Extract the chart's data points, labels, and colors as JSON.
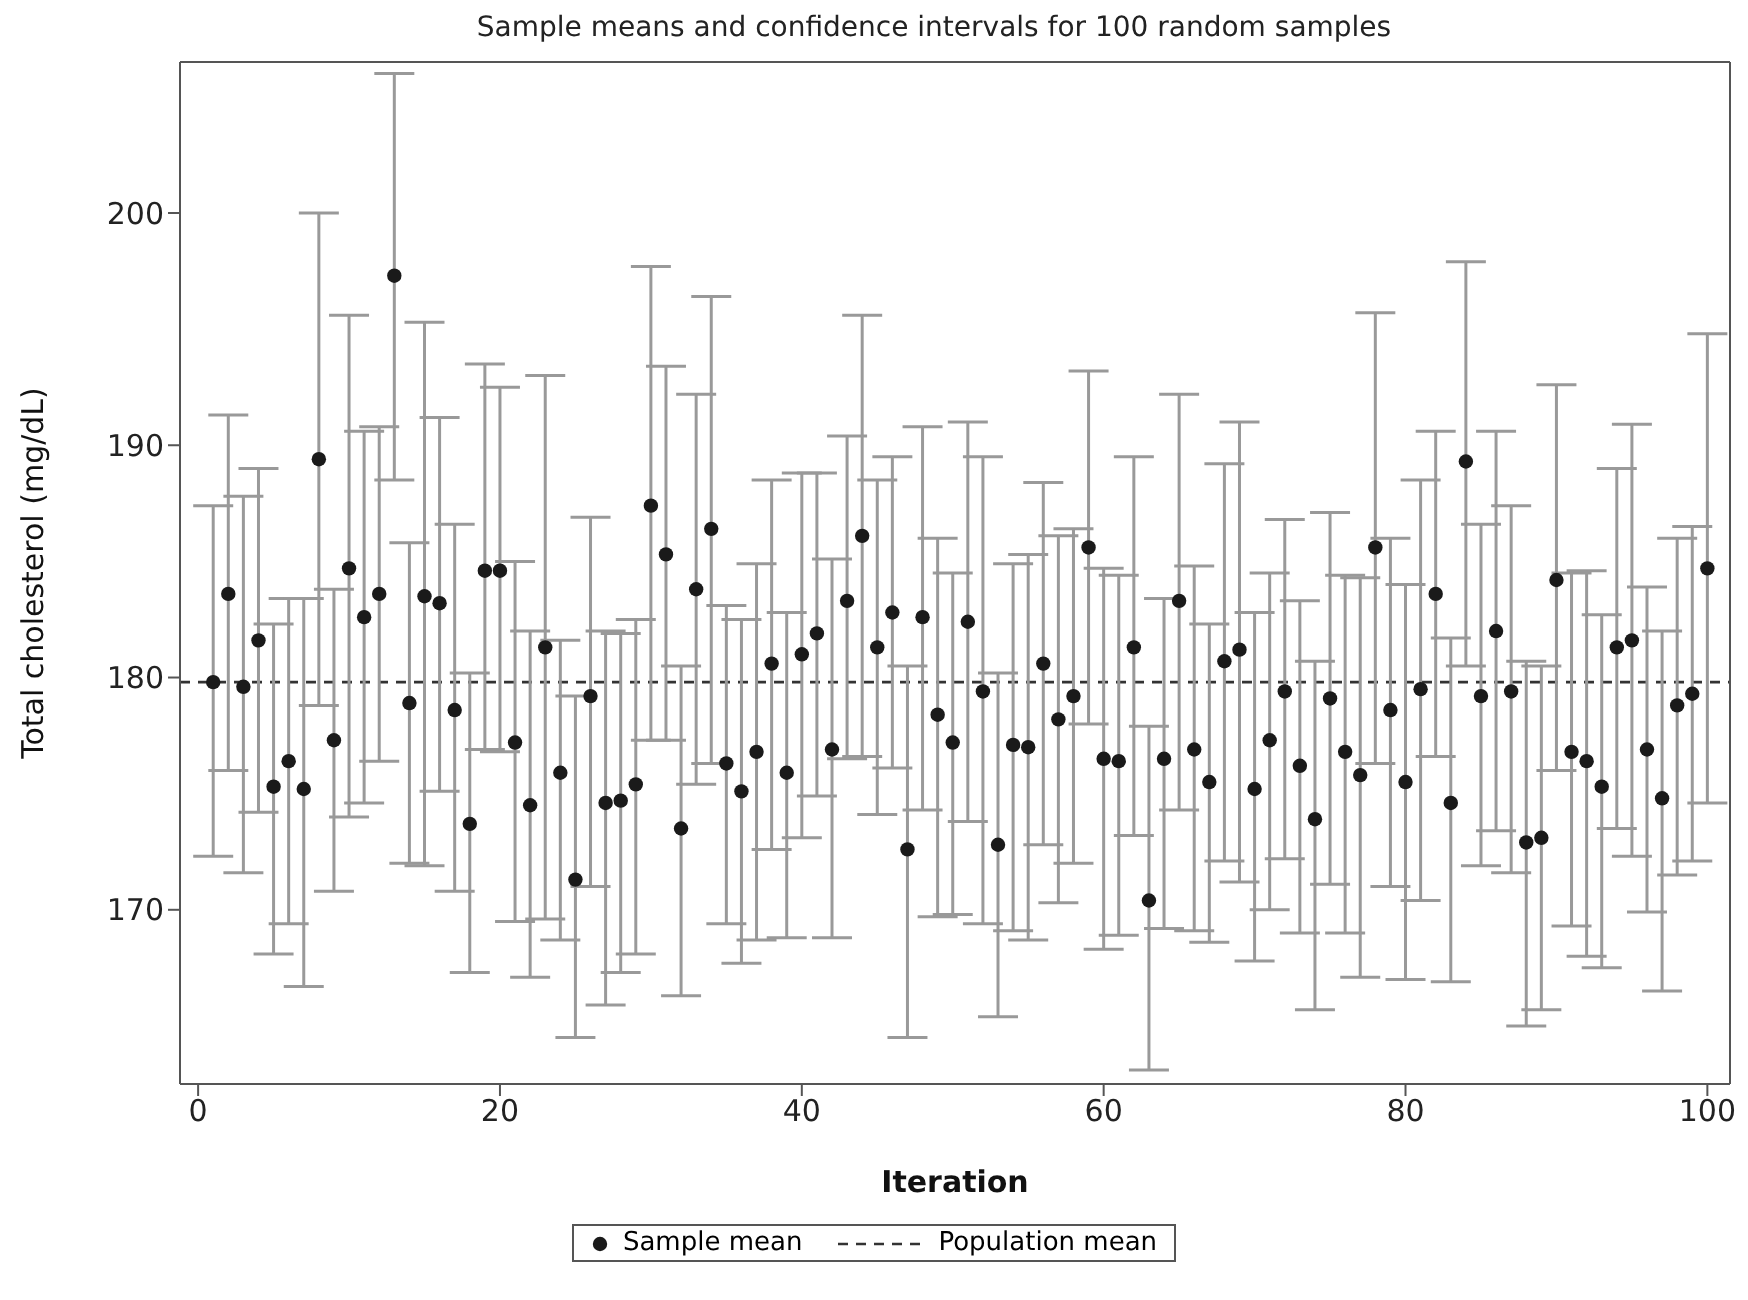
{
  "chart_data": {
    "type": "scatter",
    "title": "Sample means and confidence intervals for 100 random samples",
    "xlabel": "Iteration",
    "ylabel": "Total cholesterol (mg/dL)",
    "x": [
      1,
      2,
      3,
      4,
      5,
      6,
      7,
      8,
      9,
      10,
      11,
      12,
      13,
      14,
      15,
      16,
      17,
      18,
      19,
      20,
      21,
      22,
      23,
      24,
      25,
      26,
      27,
      28,
      29,
      30,
      31,
      32,
      33,
      34,
      35,
      36,
      37,
      38,
      39,
      40,
      41,
      42,
      43,
      44,
      45,
      46,
      47,
      48,
      49,
      50,
      51,
      52,
      53,
      54,
      55,
      56,
      57,
      58,
      59,
      60,
      61,
      62,
      63,
      64,
      65,
      66,
      67,
      68,
      69,
      70,
      71,
      72,
      73,
      74,
      75,
      76,
      77,
      78,
      79,
      80,
      81,
      82,
      83,
      84,
      85,
      86,
      87,
      88,
      89,
      90,
      91,
      92,
      93,
      94,
      95,
      96,
      97,
      98,
      99,
      100
    ],
    "series": [
      {
        "name": "Sample mean",
        "color": "#1a1a1a",
        "values": [
          179.8,
          183.6,
          179.6,
          181.6,
          175.3,
          176.4,
          175.2,
          189.4,
          177.3,
          184.7,
          182.6,
          183.6,
          197.3,
          178.9,
          183.5,
          183.2,
          178.6,
          173.7,
          184.6,
          184.6,
          177.2,
          174.5,
          181.3,
          175.9,
          171.3,
          179.2,
          174.6,
          174.7,
          175.4,
          187.4,
          185.3,
          173.5,
          183.8,
          186.4,
          176.3,
          175.1,
          176.8,
          180.6,
          175.9,
          181.0,
          181.9,
          176.9,
          183.3,
          186.1,
          181.3,
          182.8,
          172.6,
          182.6,
          178.4,
          177.2,
          182.4,
          179.4,
          172.8,
          177.1,
          177.0,
          180.6,
          178.2,
          179.2,
          185.6,
          176.5,
          176.4,
          181.3,
          170.4,
          176.5,
          183.3,
          176.9,
          175.5,
          180.7,
          181.2,
          175.2,
          177.3,
          179.4,
          176.2,
          173.9,
          179.1,
          176.8,
          175.8,
          185.6,
          178.6,
          175.5,
          179.5,
          183.6,
          174.6,
          189.3,
          179.2,
          182.0,
          179.4,
          172.9,
          173.1,
          184.2,
          176.8,
          176.4,
          175.3,
          181.3,
          181.6,
          176.9,
          174.8,
          178.8,
          179.3,
          184.7
        ],
        "errors": [
          [
            172.3,
            187.4
          ],
          [
            176.0,
            191.3
          ],
          [
            171.6,
            187.8
          ],
          [
            174.2,
            189.0
          ],
          [
            168.1,
            182.3
          ],
          [
            169.4,
            183.4
          ],
          [
            166.7,
            183.4
          ],
          [
            178.8,
            200.0
          ],
          [
            170.8,
            183.8
          ],
          [
            174.0,
            195.6
          ],
          [
            174.6,
            190.6
          ],
          [
            176.4,
            190.8
          ],
          [
            188.5,
            206.0
          ],
          [
            172.0,
            185.8
          ],
          [
            171.9,
            195.3
          ],
          [
            175.1,
            191.2
          ],
          [
            170.8,
            186.6
          ],
          [
            167.3,
            180.2
          ],
          [
            176.9,
            193.5
          ],
          [
            176.8,
            192.5
          ],
          [
            169.5,
            185.0
          ],
          [
            167.1,
            182.0
          ],
          [
            169.6,
            193.0
          ],
          [
            168.7,
            181.6
          ],
          [
            164.5,
            179.2
          ],
          [
            171.0,
            186.9
          ],
          [
            165.9,
            182.0
          ],
          [
            167.3,
            181.9
          ],
          [
            168.1,
            182.5
          ],
          [
            177.3,
            197.7
          ],
          [
            177.3,
            193.4
          ],
          [
            166.3,
            180.5
          ],
          [
            175.4,
            192.2
          ],
          [
            176.3,
            196.4
          ],
          [
            169.4,
            183.1
          ],
          [
            167.7,
            182.5
          ],
          [
            168.7,
            184.9
          ],
          [
            172.6,
            188.5
          ],
          [
            168.8,
            182.8
          ],
          [
            173.1,
            188.8
          ],
          [
            174.9,
            188.8
          ],
          [
            168.8,
            185.1
          ],
          [
            176.5,
            190.4
          ],
          [
            176.6,
            195.6
          ],
          [
            174.1,
            188.5
          ],
          [
            176.1,
            189.5
          ],
          [
            164.5,
            180.5
          ],
          [
            174.3,
            190.8
          ],
          [
            169.7,
            186.0
          ],
          [
            169.8,
            184.5
          ],
          [
            173.8,
            191.0
          ],
          [
            169.4,
            189.5
          ],
          [
            165.4,
            180.2
          ],
          [
            169.1,
            184.9
          ],
          [
            168.7,
            185.3
          ],
          [
            172.8,
            188.4
          ],
          [
            170.3,
            186.1
          ],
          [
            172.0,
            186.4
          ],
          [
            178.0,
            193.2
          ],
          [
            168.3,
            184.7
          ],
          [
            168.9,
            184.4
          ],
          [
            173.2,
            189.5
          ],
          [
            163.1,
            177.9
          ],
          [
            169.2,
            183.4
          ],
          [
            174.3,
            192.2
          ],
          [
            169.1,
            184.8
          ],
          [
            168.6,
            182.3
          ],
          [
            172.1,
            189.2
          ],
          [
            171.2,
            191.0
          ],
          [
            167.8,
            182.8
          ],
          [
            170.0,
            184.5
          ],
          [
            172.2,
            186.8
          ],
          [
            169.0,
            183.3
          ],
          [
            165.7,
            180.7
          ],
          [
            171.1,
            187.1
          ],
          [
            169.0,
            184.4
          ],
          [
            167.1,
            184.3
          ],
          [
            176.3,
            195.7
          ],
          [
            171.0,
            186.0
          ],
          [
            167.0,
            184.0
          ],
          [
            170.4,
            188.5
          ],
          [
            176.6,
            190.6
          ],
          [
            166.9,
            181.7
          ],
          [
            180.5,
            197.9
          ],
          [
            171.9,
            186.6
          ],
          [
            173.4,
            190.6
          ],
          [
            171.6,
            187.4
          ],
          [
            165.0,
            180.7
          ],
          [
            165.7,
            180.5
          ],
          [
            176.0,
            192.6
          ],
          [
            169.3,
            184.5
          ],
          [
            168.0,
            184.6
          ],
          [
            167.5,
            182.7
          ],
          [
            173.5,
            189.0
          ],
          [
            172.3,
            190.9
          ],
          [
            169.9,
            183.9
          ],
          [
            166.5,
            182.0
          ],
          [
            171.5,
            186.0
          ],
          [
            172.1,
            186.5
          ],
          [
            174.6,
            194.8
          ]
        ]
      }
    ],
    "ref_lines": [
      {
        "axis": "y",
        "value": 179.8,
        "label": "Population mean",
        "color": "#333333",
        "line_style": "dashed"
      }
    ],
    "xlim": [
      -1.2,
      101.5
    ],
    "xticks": [
      0,
      20,
      40,
      60,
      80,
      100
    ],
    "ylim": [
      162.5,
      206.5
    ],
    "yticks": [
      170,
      180,
      190,
      200
    ],
    "marker": "circle",
    "legend": "bottom"
  }
}
